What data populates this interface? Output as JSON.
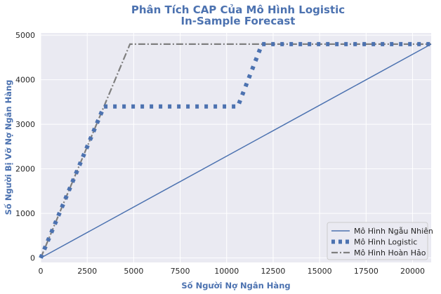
{
  "chart_data": {
    "type": "line",
    "title": "Phân Tích CAP Của Mô Hình Logistic",
    "subtitle": "In-Sample Forecast",
    "xlabel": "Số Người Nợ Ngân Hàng",
    "ylabel": "Số Người Bị Vỡ Nợ Ngân Hàng",
    "xlim": [
      0,
      21000
    ],
    "ylim": [
      -100,
      5050
    ],
    "x_ticks": [
      0,
      2500,
      5000,
      7500,
      10000,
      12500,
      15000,
      17500,
      20000
    ],
    "x_tick_labels": [
      "0",
      "2500",
      "5000",
      "7500",
      "10000",
      "12500",
      "15000",
      "17500",
      "20000"
    ],
    "y_ticks": [
      0,
      1000,
      2000,
      3000,
      4000,
      5000
    ],
    "y_tick_labels": [
      "0",
      "1000",
      "2000",
      "3000",
      "4000",
      "5000"
    ],
    "grid": true,
    "legend_position": "bottom-right",
    "series": [
      {
        "name": "Mô Hình Ngẫu Nhiên",
        "style": "solid",
        "color": "#4c72b0",
        "x": [
          0,
          21000
        ],
        "y": [
          0,
          4800
        ]
      },
      {
        "name": "Mô Hình Logistic",
        "style": "dotted",
        "color": "#4c72b0",
        "x": [
          0,
          3400,
          10600,
          11900,
          21000
        ],
        "y": [
          0,
          3400,
          3400,
          4800,
          4800
        ]
      },
      {
        "name": "Mô Hình Hoàn Hảo",
        "style": "dashdot",
        "color": "#7f7f7f",
        "x": [
          0,
          4800,
          21000
        ],
        "y": [
          0,
          4800,
          4800
        ]
      }
    ]
  },
  "colors": {
    "plot_background": "#eaeaf2",
    "grid": "#ffffff",
    "accent": "#4c72b0",
    "perfect": "#7f7f7f"
  }
}
